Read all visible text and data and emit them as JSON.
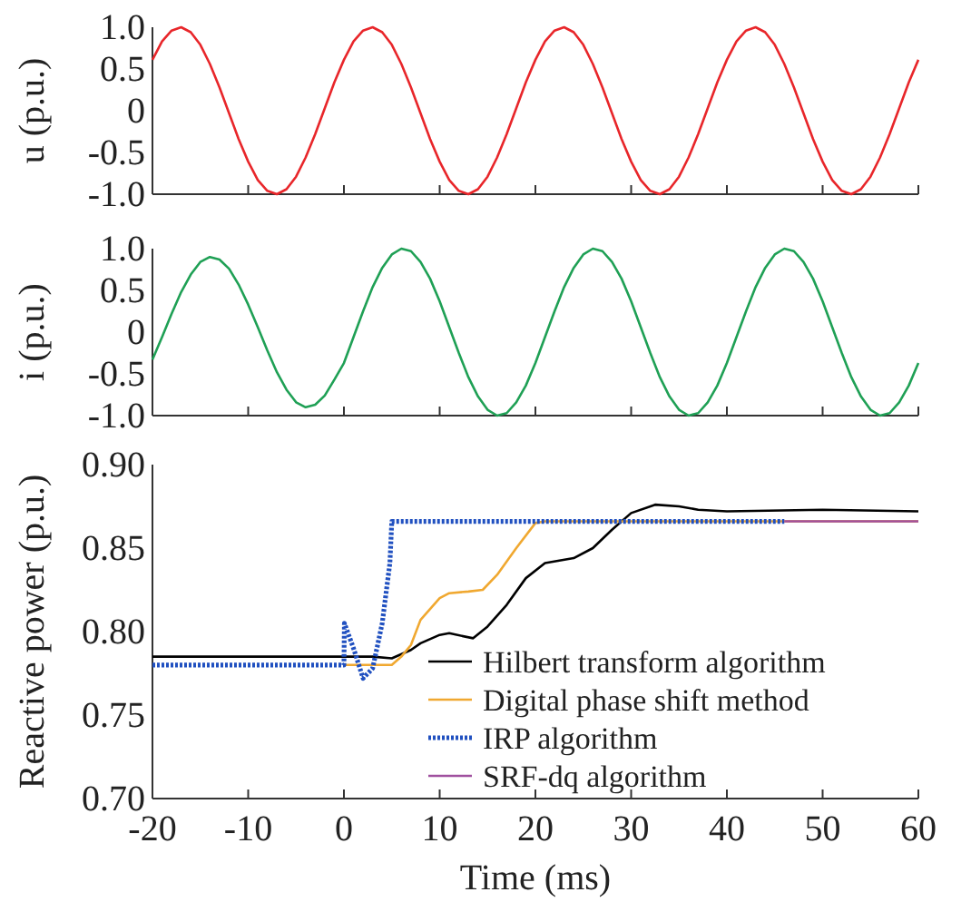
{
  "chart_data": [
    {
      "type": "line",
      "ylabel": "u (p.u.)",
      "xlim": [
        -20,
        60
      ],
      "xticks": [
        -20,
        -10,
        0,
        10,
        20,
        30,
        40,
        50,
        60
      ],
      "tick_labels": "y",
      "ylim": [
        -1,
        1
      ],
      "yticks": [
        {
          "value": -1,
          "label": "-1.0"
        },
        -0.5,
        0,
        0.5,
        {
          "value": 1,
          "label": "1.0"
        }
      ],
      "x": [
        -20,
        -19,
        -18,
        -17,
        -16,
        -15,
        -14,
        -13,
        -12,
        -11,
        -10,
        -9,
        -8,
        -7,
        -6,
        -5,
        -4,
        -3,
        -2,
        -1,
        0,
        1,
        2,
        3,
        4,
        5,
        6,
        7,
        8,
        9,
        10,
        11,
        12,
        13,
        14,
        15,
        16,
        17,
        18,
        19,
        20,
        21,
        22,
        23,
        24,
        25,
        26,
        27,
        28,
        29,
        30,
        31,
        32,
        33,
        34,
        35,
        36,
        37,
        38,
        39,
        40,
        41,
        42,
        43,
        44,
        45,
        46,
        47,
        48,
        49,
        50,
        51,
        52,
        53,
        54,
        55,
        56,
        57,
        58,
        59,
        60
      ],
      "series": [
        {
          "color": "#e8262a",
          "values": [
            0.61,
            0.83,
            0.96,
            1.0,
            0.94,
            0.79,
            0.56,
            0.28,
            -0.03,
            -0.34,
            -0.61,
            -0.83,
            -0.96,
            -1.0,
            -0.94,
            -0.79,
            -0.56,
            -0.28,
            0.03,
            0.34,
            0.61,
            0.83,
            0.96,
            1.0,
            0.94,
            0.79,
            0.56,
            0.28,
            -0.03,
            -0.34,
            -0.61,
            -0.83,
            -0.96,
            -1.0,
            -0.94,
            -0.79,
            -0.56,
            -0.28,
            0.03,
            0.34,
            0.61,
            0.83,
            0.96,
            1.0,
            0.94,
            0.79,
            0.56,
            0.28,
            -0.03,
            -0.34,
            -0.61,
            -0.83,
            -0.96,
            -1.0,
            -0.94,
            -0.79,
            -0.56,
            -0.28,
            0.03,
            0.34,
            0.61,
            0.83,
            0.96,
            1.0,
            0.94,
            0.79,
            0.56,
            0.28,
            -0.03,
            -0.34,
            -0.61,
            -0.83,
            -0.96,
            -1.0,
            -0.94,
            -0.79,
            -0.56,
            -0.28,
            0.03,
            0.34,
            0.61
          ]
        }
      ]
    },
    {
      "type": "line",
      "ylabel": "i (p.u.)",
      "xlim": [
        -20,
        60
      ],
      "xticks": [
        -20,
        -10,
        0,
        10,
        20,
        30,
        40,
        50,
        60
      ],
      "tick_labels": "y",
      "ylim": [
        -1,
        1
      ],
      "yticks": [
        {
          "value": -1,
          "label": "-1.0"
        },
        -0.5,
        0,
        0.5,
        {
          "value": 1,
          "label": "1.0"
        }
      ],
      "x": [
        -20,
        -19,
        -18,
        -17,
        -16,
        -15,
        -14,
        -13,
        -12,
        -11,
        -10,
        -9,
        -8,
        -7,
        -6,
        -5,
        -4,
        -3,
        -2,
        -1,
        0,
        1,
        2,
        3,
        4,
        5,
        6,
        7,
        8,
        9,
        10,
        11,
        12,
        13,
        14,
        15,
        16,
        17,
        18,
        19,
        20,
        21,
        22,
        23,
        24,
        25,
        26,
        27,
        28,
        29,
        30,
        31,
        32,
        33,
        34,
        35,
        36,
        37,
        38,
        39,
        40,
        41,
        42,
        43,
        44,
        45,
        46,
        47,
        48,
        49,
        50,
        51,
        52,
        53,
        54,
        55,
        56,
        57,
        58,
        59,
        60
      ],
      "series": [
        {
          "color": "#1fa055",
          "values": [
            -0.33,
            -0.06,
            0.22,
            0.48,
            0.69,
            0.84,
            0.9,
            0.87,
            0.76,
            0.57,
            0.33,
            0.06,
            -0.22,
            -0.48,
            -0.69,
            -0.84,
            -0.9,
            -0.87,
            -0.76,
            -0.57,
            -0.37,
            -0.06,
            0.25,
            0.54,
            0.77,
            0.93,
            1.0,
            0.97,
            0.84,
            0.64,
            0.37,
            0.06,
            -0.25,
            -0.54,
            -0.77,
            -0.93,
            -1.0,
            -0.97,
            -0.84,
            -0.64,
            -0.37,
            -0.06,
            0.25,
            0.54,
            0.77,
            0.93,
            1.0,
            0.97,
            0.84,
            0.64,
            0.37,
            0.06,
            -0.25,
            -0.54,
            -0.77,
            -0.93,
            -1.0,
            -0.97,
            -0.84,
            -0.64,
            -0.37,
            -0.06,
            0.25,
            0.54,
            0.77,
            0.93,
            1.0,
            0.97,
            0.84,
            0.64,
            0.37,
            0.06,
            -0.25,
            -0.54,
            -0.77,
            -0.93,
            -1.0,
            -0.97,
            -0.84,
            -0.64,
            -0.37
          ]
        }
      ]
    },
    {
      "type": "line",
      "ylabel": "Reactive power (p.u.)",
      "xlabel": "Time (ms)",
      "xlim": [
        -20,
        60
      ],
      "xticks": [
        -20,
        -10,
        0,
        10,
        20,
        30,
        40,
        50,
        60
      ],
      "ylim": [
        0.7,
        0.9
      ],
      "yticks": [
        {
          "value": 0.7,
          "label": "0.70"
        },
        {
          "value": 0.75,
          "label": "0.75"
        },
        {
          "value": 0.8,
          "label": "0.80"
        },
        {
          "value": 0.85,
          "label": "0.85"
        },
        {
          "value": 0.9,
          "label": "0.90"
        }
      ],
      "legend": "bottom right",
      "series": [
        {
          "name": "Hilbert transform algorithm",
          "color": "#000000",
          "line_style": "solid",
          "x": [
            -20,
            -10,
            0,
            3,
            5,
            7,
            8,
            10,
            11,
            13.5,
            15,
            17,
            19,
            21,
            24,
            26,
            28,
            30,
            32.5,
            35,
            37,
            40,
            50,
            60
          ],
          "values": [
            0.785,
            0.785,
            0.785,
            0.785,
            0.784,
            0.789,
            0.793,
            0.798,
            0.799,
            0.796,
            0.803,
            0.816,
            0.832,
            0.841,
            0.844,
            0.85,
            0.861,
            0.871,
            0.876,
            0.875,
            0.873,
            0.872,
            0.873,
            0.872
          ]
        },
        {
          "name": "Digital phase shift method",
          "color": "#f0a830",
          "line_style": "solid",
          "x": [
            0,
            5,
            6,
            7,
            8,
            10,
            11,
            13,
            14.5,
            16,
            18,
            20,
            21,
            60
          ],
          "values": [
            0.78,
            0.78,
            0.785,
            0.792,
            0.807,
            0.82,
            0.823,
            0.824,
            0.825,
            0.834,
            0.85,
            0.865,
            0.866,
            0.866
          ]
        },
        {
          "name": "IRP algorithm",
          "color": "#2050c0",
          "line_style": "dotted",
          "x": [
            -20,
            0,
            0.05,
            1,
            2,
            3,
            4,
            4.8,
            5,
            46
          ],
          "values": [
            0.78,
            0.78,
            0.805,
            0.79,
            0.772,
            0.778,
            0.805,
            0.841,
            0.866,
            0.866
          ]
        },
        {
          "name": "SRF-dq algorithm",
          "color": "#a0509f",
          "line_style": "solid",
          "x": [
            46,
            60
          ],
          "values": [
            0.866,
            0.866
          ]
        }
      ]
    }
  ]
}
